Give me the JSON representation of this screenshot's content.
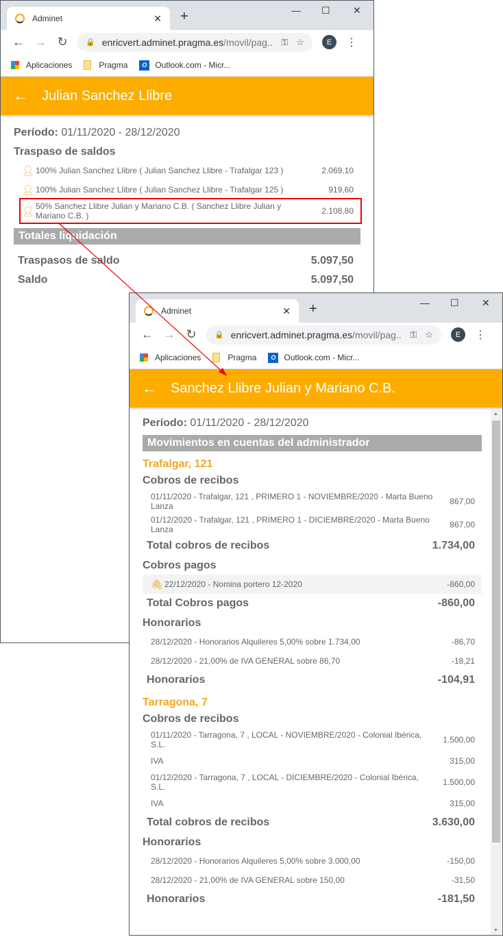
{
  "browser": {
    "tab_title": "Adminet",
    "url_host": "enricvert.adminet.pragma.es",
    "url_path": "/movil/pag...",
    "avatar": "E",
    "bookmarks": [
      {
        "label": "Aplicaciones",
        "icon": "apps-grid-icon"
      },
      {
        "label": "Pragma",
        "icon": "folder-icon"
      },
      {
        "label": "Outlook.com - Micr...",
        "icon": "outlook-icon"
      }
    ]
  },
  "accent_color": "#fdad00",
  "highlight_color": "#e00000",
  "window1": {
    "title": "Julian Sanchez Llibre",
    "periodo_label": "Período:",
    "periodo_value": "01/11/2020 - 28/12/2020",
    "section": "Traspaso de saldos",
    "rows": [
      {
        "text": "100% Julian Sanchez Llibre ( Julian Sanchez Llibre - Trafalgar 123 )",
        "amount": "2.069,10"
      },
      {
        "text": "100% Julian Sanchez Llibre ( Julian Sanchez Llibre - Trafalgar 125 )",
        "amount": "919,60"
      },
      {
        "text": "50% Sanchez Llibre Julian y Mariano C.B. ( Sanchez Llibre Julian y Mariano C.B. )",
        "amount": "2.108,80",
        "highlighted": true
      }
    ],
    "totals_bar": "Totales liquidación",
    "totals": [
      {
        "label": "Traspasos de saldo",
        "amount": "5.097,50"
      },
      {
        "label": "Saldo",
        "amount": "5.097,50"
      }
    ]
  },
  "window2": {
    "title": "Sanchez Llibre Julian y Mariano C.B.",
    "periodo_label": "Período:",
    "periodo_value": "01/11/2020 - 28/12/2020",
    "bar": "Movimientos en cuentas del administrador",
    "buildings": [
      {
        "name": "Trafalgar, 121",
        "groups": [
          {
            "title": "Cobros de recibos",
            "rows": [
              {
                "text": "01/11/2020 - Trafalgar, 121 , PRIMERO 1 - NOVIEMBRE/2020 - Marta Bueno Lanza",
                "amount": "867,00"
              },
              {
                "text": "01/12/2020 - Trafalgar, 121 , PRIMERO 1 - DICIEMBRE/2020 - Marta Bueno Lanza",
                "amount": "867,00"
              }
            ],
            "total_label": "Total cobros de recibos",
            "total": "1.734,00"
          },
          {
            "title": "Cobros pagos",
            "rows": [
              {
                "text": "22/12/2020 - Nomina portero 12-2020",
                "amount": "-860,00",
                "attachment": true
              }
            ],
            "total_label": "Total Cobros pagos",
            "total": "-860,00"
          },
          {
            "title": "Honorarios",
            "rows": [
              {
                "text": "28/12/2020 - Honorarios Alquileres 5,00% sobre 1.734,00",
                "amount": "-86,70"
              },
              {
                "text": "28/12/2020 - 21,00% de IVA GENERAL sobre 86,70",
                "amount": "-18,21"
              }
            ],
            "total_label": "Honorarios",
            "total": "-104,91"
          }
        ]
      },
      {
        "name": "Tarragona, 7",
        "groups": [
          {
            "title": "Cobros de recibos",
            "rows": [
              {
                "text": "01/11/2020 - Tarragona, 7 , LOCAL - NOVIEMBRE/2020 - Colonial Ibérica, S.L.",
                "amount": "1.500,00"
              },
              {
                "text": "IVA",
                "amount": "315,00"
              },
              {
                "text": "01/12/2020 - Tarragona, 7 , LOCAL - DICIEMBRE/2020 - Colonial Ibérica, S.L.",
                "amount": "1.500,00"
              },
              {
                "text": "IVA",
                "amount": "315,00"
              }
            ],
            "total_label": "Total cobros de recibos",
            "total": "3.630,00"
          },
          {
            "title": "Honorarios",
            "rows": [
              {
                "text": "28/12/2020 - Honorarios Alquileres 5,00% sobre 3.000,00",
                "amount": "-150,00"
              },
              {
                "text": "28/12/2020 - 21,00% de IVA GENERAL sobre 150,00",
                "amount": "-31,50"
              }
            ],
            "total_label": "Honorarios",
            "total": "-181,50"
          }
        ]
      }
    ]
  }
}
